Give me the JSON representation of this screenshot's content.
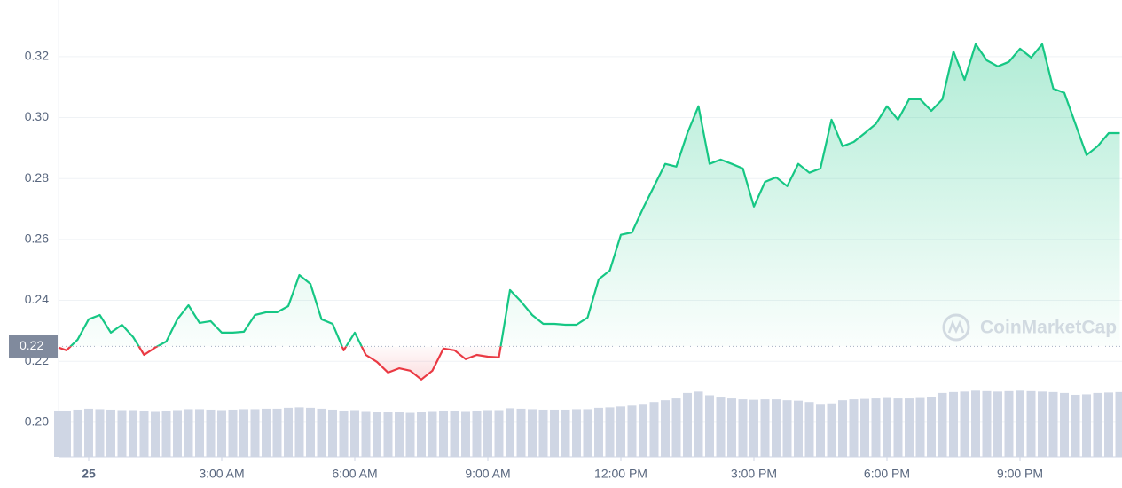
{
  "chart_data": {
    "type": "line",
    "x": [
      -0.68,
      -0.5,
      -0.25,
      0,
      0.25,
      0.5,
      0.75,
      1,
      1.25,
      1.5,
      1.75,
      2,
      2.25,
      2.5,
      2.75,
      3,
      3.25,
      3.5,
      3.75,
      4,
      4.25,
      4.5,
      4.75,
      5,
      5.25,
      5.5,
      5.75,
      6,
      6.25,
      6.5,
      6.75,
      7,
      7.25,
      7.5,
      7.75,
      8,
      8.25,
      8.5,
      8.75,
      9,
      9.25,
      9.5,
      9.75,
      10,
      10.25,
      10.5,
      10.75,
      11,
      11.25,
      11.5,
      11.75,
      12,
      12.25,
      12.5,
      12.75,
      13,
      13.25,
      13.5,
      13.75,
      14,
      14.25,
      14.5,
      14.75,
      15,
      15.25,
      15.5,
      15.75,
      16,
      16.25,
      16.5,
      16.75,
      17,
      17.25,
      17.5,
      17.75,
      18,
      18.25,
      18.5,
      18.75,
      19,
      19.25,
      19.5,
      19.75,
      20,
      20.25,
      20.5,
      20.75,
      21,
      21.25,
      21.5,
      21.75,
      22,
      22.25,
      22.5,
      22.75,
      23,
      23.25
    ],
    "series": [
      {
        "color": "#16c784",
        "below_color": "#ea3943",
        "values": [
          0.2245,
          0.2236,
          0.2271,
          0.2338,
          0.2352,
          0.2294,
          0.232,
          0.228,
          0.2221,
          0.2245,
          0.2265,
          0.2338,
          0.2384,
          0.2326,
          0.2332,
          0.2294,
          0.2294,
          0.2297,
          0.2352,
          0.2361,
          0.2361,
          0.2381,
          0.2483,
          0.2454,
          0.2338,
          0.2323,
          0.2236,
          0.2294,
          0.2221,
          0.2198,
          0.2163,
          0.2177,
          0.2169,
          0.214,
          0.2169,
          0.2242,
          0.2236,
          0.2207,
          0.2221,
          0.2215,
          0.2213,
          0.2434,
          0.2396,
          0.2352,
          0.2323,
          0.2323,
          0.232,
          0.232,
          0.2344,
          0.2469,
          0.2498,
          0.2615,
          0.2623,
          0.2702,
          0.2775,
          0.2848,
          0.2839,
          0.2949,
          0.3037,
          0.2848,
          0.2862,
          0.2848,
          0.2833,
          0.2708,
          0.2789,
          0.2804,
          0.2775,
          0.2848,
          0.2819,
          0.2833,
          0.2993,
          0.2906,
          0.292,
          0.2949,
          0.2979,
          0.3037,
          0.2993,
          0.306,
          0.306,
          0.3022,
          0.306,
          0.3217,
          0.3124,
          0.3241,
          0.3188,
          0.3168,
          0.3183,
          0.3226,
          0.3197,
          0.3241,
          0.3095,
          0.3081,
          0.2979,
          0.2877,
          0.2906,
          0.2949,
          0.2949
        ]
      },
      {
        "type": "bar",
        "axis": "y2",
        "color": "#cfd6e4",
        "values": [
          10.1,
          10.1,
          10.3,
          10.5,
          10.4,
          10.3,
          10.2,
          10.2,
          10.1,
          10.0,
          10.1,
          10.2,
          10.4,
          10.4,
          10.3,
          10.2,
          10.3,
          10.4,
          10.4,
          10.5,
          10.5,
          10.7,
          10.8,
          10.7,
          10.5,
          10.3,
          10.1,
          10.2,
          10.0,
          9.9,
          9.9,
          9.9,
          9.8,
          9.9,
          10.0,
          10.1,
          10.1,
          10.0,
          10.1,
          10.2,
          10.2,
          10.6,
          10.5,
          10.4,
          10.3,
          10.3,
          10.3,
          10.4,
          10.4,
          10.7,
          10.8,
          11.0,
          11.2,
          11.6,
          12.0,
          12.4,
          12.8,
          14.0,
          14.3,
          13.5,
          13.0,
          12.8,
          12.6,
          12.5,
          12.6,
          12.6,
          12.4,
          12.3,
          12.0,
          11.6,
          11.7,
          12.4,
          12.6,
          12.7,
          12.8,
          12.9,
          12.8,
          12.8,
          12.9,
          13.1,
          14.0,
          14.2,
          14.3,
          14.5,
          14.4,
          14.3,
          14.4,
          14.5,
          14.4,
          14.3,
          14.2,
          14.0,
          13.6,
          13.7,
          14.0,
          14.1,
          14.2
        ]
      }
    ],
    "baseline": {
      "value": 0.2249,
      "label": "0.22"
    },
    "xlim": [
      -0.68,
      23.25
    ],
    "xticks": [
      {
        "value": 0,
        "label": "25"
      },
      {
        "value": 3,
        "label": "3:00 AM"
      },
      {
        "value": 6,
        "label": "6:00 AM"
      },
      {
        "value": 9,
        "label": "9:00 AM"
      },
      {
        "value": 12,
        "label": "12:00 PM"
      },
      {
        "value": 15,
        "label": "3:00 PM"
      },
      {
        "value": 18,
        "label": "6:00 PM"
      },
      {
        "value": 21,
        "label": "9:00 PM"
      }
    ],
    "ylim": [
      0.1886,
      0.3386
    ],
    "yticks": [
      {
        "value": 0.2,
        "label": "0.20"
      },
      0.22,
      0.24,
      0.26,
      0.28,
      {
        "value": 0.3,
        "label": "0.30"
      },
      0.32
    ],
    "y2lim": [
      0,
      100
    ],
    "grid": true,
    "watermark": "CoinMarketCap"
  }
}
